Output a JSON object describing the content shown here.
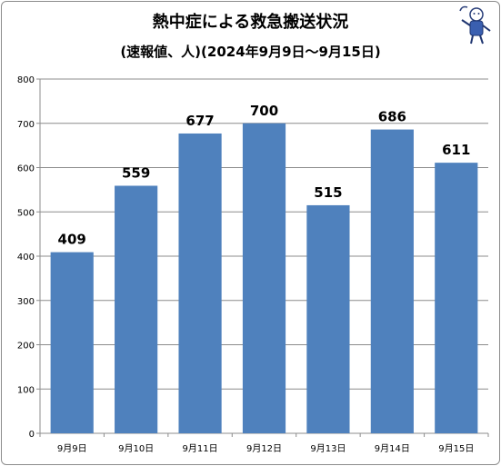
{
  "chart_data": {
    "type": "bar",
    "title": "熱中症による救急搬送状況",
    "subtitle": "(速報値、人)(2024年9月9日～9月15日)",
    "categories": [
      "9月9日",
      "9月10日",
      "9月11日",
      "9月12日",
      "9月13日",
      "9月14日",
      "9月15日"
    ],
    "values": [
      409,
      559,
      677,
      700,
      515,
      686,
      611
    ],
    "ylim": [
      0,
      800
    ],
    "yticks": [
      0,
      100,
      200,
      300,
      400,
      500,
      600,
      700,
      800
    ],
    "grid": true,
    "legend": "none",
    "bar_color": "#4f81bd"
  }
}
